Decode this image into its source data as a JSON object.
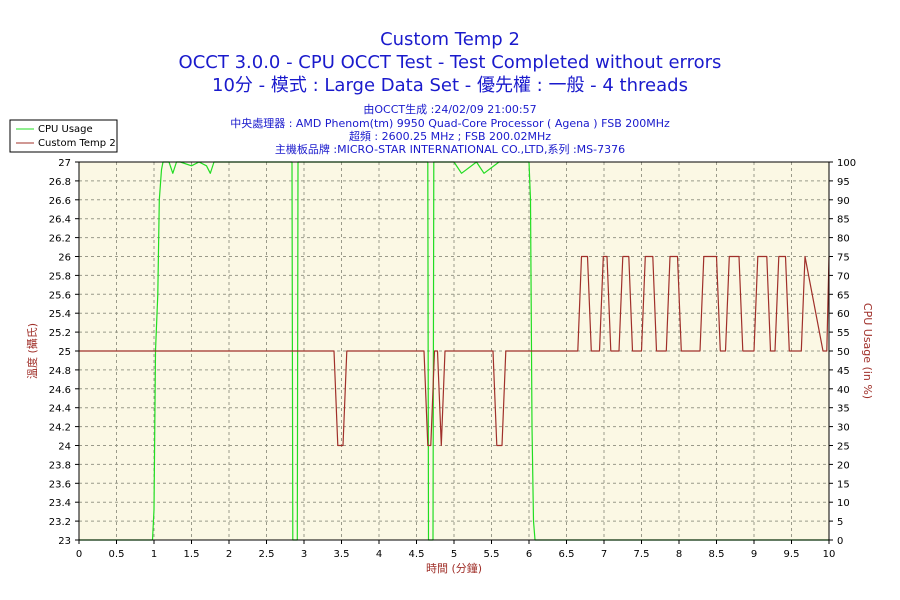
{
  "titles": [
    "Custom Temp 2",
    "OCCT 3.0.0 - CPU OCCT Test - Test Completed without errors",
    "10分 - 模式 : Large Data Set - 優先權 : 一般 - 4 threads"
  ],
  "info_lines": [
    "由OCCT生成 :24/02/09 21:00:57",
    "中央處理器 : AMD Phenom(tm) 9950 Quad-Core Processor ( Agena ) FSB 200MHz",
    "超頻 : 2600.25 MHz ; FSB 200.02MHz",
    "主機板品牌 :MICRO-STAR INTERNATIONAL CO.,LTD,系列 :MS-7376"
  ],
  "colors": {
    "cpu_usage": "#22dd22",
    "custom_temp": "#a0302a",
    "plot_bg": "#fbf8e4",
    "grid": "#9a9a8a",
    "title": "#1a1acc"
  },
  "chart_data": {
    "type": "line",
    "xlabel": "時間 (分鐘)",
    "ylabel_left": "溫度 (攝氏)",
    "ylabel_right": "CPU Usage (in %)",
    "xlim": [
      0,
      10
    ],
    "ylim_left": [
      23,
      27
    ],
    "ylim_right": [
      0,
      100
    ],
    "x_ticks": [
      "0",
      "0.5",
      "1",
      "1.5",
      "2",
      "2.5",
      "3",
      "3.5",
      "4",
      "4.5",
      "5",
      "5.5",
      "6",
      "6.5",
      "7",
      "7.5",
      "8",
      "8.5",
      "9",
      "9.5",
      "10"
    ],
    "y_left_ticks": [
      "23",
      "23.2",
      "23.4",
      "23.6",
      "23.8",
      "24",
      "24.2",
      "24.4",
      "24.6",
      "24.8",
      "25",
      "25.2",
      "25.4",
      "25.6",
      "25.8",
      "26",
      "26.2",
      "26.4",
      "26.6",
      "26.8",
      "27"
    ],
    "y_right_ticks": [
      "0",
      "5",
      "10",
      "15",
      "20",
      "25",
      "30",
      "35",
      "40",
      "45",
      "50",
      "55",
      "60",
      "65",
      "70",
      "75",
      "80",
      "85",
      "90",
      "95",
      "100"
    ],
    "grid": true,
    "legend_position": "top-left",
    "series": [
      {
        "name": "CPU Usage",
        "axis": "right",
        "x": [
          0,
          0.98,
          1.0,
          1.02,
          1.05,
          1.07,
          1.1,
          1.12,
          1.2,
          1.25,
          1.3,
          1.35,
          1.5,
          1.6,
          1.7,
          1.75,
          1.8,
          1.9,
          2.0,
          2.2,
          2.4,
          2.6,
          2.8,
          2.84,
          2.85,
          2.91,
          2.92,
          3.2,
          3.5,
          3.8,
          4.0,
          4.2,
          4.4,
          4.6,
          4.65,
          4.66,
          4.72,
          4.73,
          5.0,
          5.1,
          5.3,
          5.4,
          5.6,
          5.8,
          5.9,
          6.0,
          6.02,
          6.04,
          6.06,
          6.08,
          10
        ],
        "y": [
          0,
          0,
          8,
          50,
          65,
          90,
          98,
          100,
          100,
          97,
          100,
          100,
          99,
          100,
          99,
          97,
          100,
          100,
          100,
          100,
          100,
          100,
          100,
          100,
          0,
          0,
          100,
          100,
          100,
          100,
          100,
          100,
          100,
          100,
          100,
          0,
          0,
          100,
          100,
          97,
          100,
          97,
          100,
          100,
          100,
          100,
          90,
          30,
          5,
          0,
          0
        ]
      },
      {
        "name": "Custom Temp 2",
        "axis": "left",
        "x": [
          0,
          3.4,
          3.45,
          3.52,
          3.57,
          4.6,
          4.65,
          4.69,
          4.74,
          4.78,
          4.83,
          4.88,
          5.52,
          5.57,
          5.64,
          5.69,
          6.65,
          6.7,
          6.78,
          6.83,
          6.94,
          6.99,
          7.04,
          7.09,
          7.2,
          7.25,
          7.33,
          7.38,
          7.5,
          7.55,
          7.65,
          7.7,
          7.83,
          7.88,
          7.98,
          8.03,
          8.28,
          8.33,
          8.5,
          8.55,
          8.62,
          8.67,
          8.8,
          8.85,
          9.0,
          9.05,
          9.17,
          9.22,
          9.28,
          9.33,
          9.42,
          9.47,
          9.63,
          9.68,
          9.92,
          9.97,
          10
        ],
        "y": [
          25,
          25,
          24,
          24,
          25,
          25,
          24,
          24,
          25,
          25,
          24,
          25,
          25,
          24,
          24,
          25,
          25,
          26,
          26,
          25,
          25,
          26,
          26,
          25,
          25,
          26,
          26,
          25,
          25,
          26,
          26,
          25,
          25,
          26,
          26,
          25,
          25,
          26,
          26,
          25,
          25,
          26,
          26,
          25,
          25,
          26,
          26,
          25,
          25,
          26,
          26,
          25,
          25,
          26,
          25,
          25,
          26
        ]
      }
    ]
  }
}
